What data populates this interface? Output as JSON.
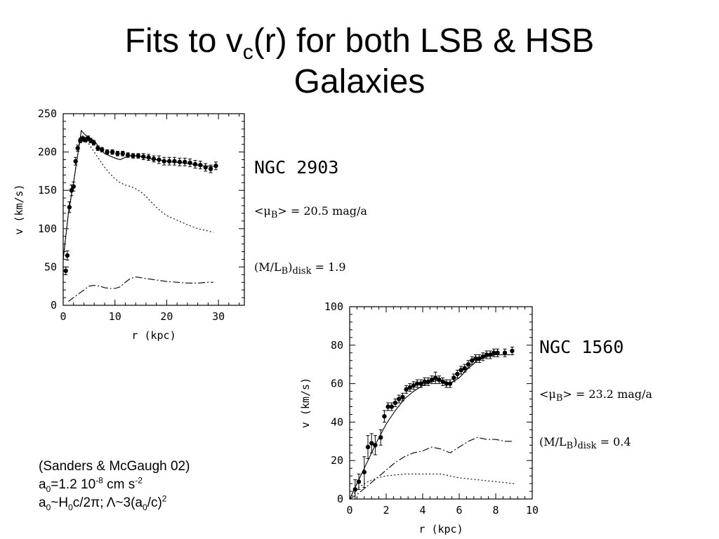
{
  "title": {
    "line1_pre": "Fits to v",
    "line1_sub": "c",
    "line1_post": "(r) for both LSB & HSB",
    "line2": "Galaxies"
  },
  "notes": {
    "line1": "(Sanders & McGaugh 02)",
    "line2": {
      "a": "a",
      "a_sub": "0",
      "eq": "=1.2 10",
      "exp": "-8",
      "unit": " cm s",
      "unit_exp": "-2"
    },
    "line3": {
      "a": "a",
      "a_sub": "0",
      "sep": "~H",
      "h_sub": "0",
      "mid": "c/2π; Λ~3(a",
      "a2_sub": "0",
      "tail": "/c)",
      "tail_exp": "2"
    }
  },
  "chart_data": [
    {
      "type": "scatter",
      "galaxy": "NGC 2903",
      "surface_brightness": {
        "lhs": "<μ",
        "lhs_sub": "B",
        "rhs": "> = 20.5 mag/a"
      },
      "mass_to_light": {
        "lhs": "(M/L",
        "lhs_sub": "B",
        "mid": ")",
        "mid_sub": "disk",
        "rhs": " = 1.9"
      },
      "xlabel": "r (kpc)",
      "ylabel": "v (km/s)",
      "xlim": [
        0,
        35
      ],
      "ylim": [
        0,
        250
      ],
      "xticks": [
        0,
        10,
        20,
        30
      ],
      "yticks": [
        0,
        50,
        100,
        150,
        200,
        250
      ],
      "observed": {
        "x": [
          0.5,
          0.8,
          1.2,
          1.6,
          2.0,
          2.4,
          2.8,
          3.3,
          3.8,
          4.3,
          4.8,
          5.3,
          5.9,
          6.7,
          7.5,
          8.5,
          9.5,
          10.5,
          11.5,
          12.5,
          13.5,
          14.5,
          15.5,
          16.5,
          17.5,
          18.5,
          19.5,
          20.5,
          21.5,
          22.5,
          23.5,
          24.5,
          25.5,
          26.5,
          27.5,
          28.5,
          29.5
        ],
        "y": [
          45,
          65,
          128,
          150,
          155,
          188,
          205,
          215,
          217,
          216,
          218,
          215,
          212,
          205,
          203,
          200,
          200,
          198,
          198,
          196,
          195,
          195,
          194,
          193,
          191,
          190,
          188,
          188,
          188,
          187,
          187,
          186,
          184,
          183,
          180,
          178,
          182
        ],
        "err": [
          5,
          6,
          7,
          7,
          6,
          5,
          4,
          3,
          3,
          3,
          3,
          3,
          3,
          3,
          3,
          3,
          3,
          3,
          3,
          3,
          3,
          3,
          4,
          4,
          4,
          5,
          5,
          5,
          5,
          5,
          5,
          5,
          5,
          5,
          5,
          5,
          5
        ]
      },
      "fit": {
        "x": [
          0,
          1,
          2,
          3,
          3.5,
          4,
          5,
          6,
          7,
          8,
          9,
          10,
          11,
          12,
          13,
          14,
          15,
          17,
          19,
          21,
          23,
          25,
          27,
          29
        ],
        "y": [
          60,
          120,
          160,
          205,
          228,
          224,
          218,
          215,
          205,
          198,
          195,
          192,
          190,
          193,
          195,
          195,
          194,
          191,
          189,
          187,
          186,
          184,
          182,
          181
        ]
      },
      "disk": {
        "x": [
          0,
          1,
          2,
          3,
          3.5,
          4,
          5,
          6,
          7,
          8,
          9,
          10,
          11,
          12,
          13,
          14,
          15,
          16,
          17,
          18,
          19,
          20,
          22,
          24,
          26,
          28,
          29
        ],
        "y": [
          60,
          120,
          160,
          205,
          222,
          220,
          210,
          200,
          190,
          180,
          172,
          165,
          160,
          157,
          155,
          152,
          148,
          142,
          135,
          128,
          122,
          117,
          111,
          105,
          100,
          97,
          95
        ]
      },
      "gas": {
        "x": [
          1,
          2,
          3,
          4,
          5,
          6,
          7,
          8,
          9,
          10,
          11,
          12,
          13,
          14,
          15,
          16,
          18,
          20,
          22,
          24,
          26,
          28,
          29
        ],
        "y": [
          5,
          10,
          15,
          20,
          25,
          26,
          25,
          23,
          22,
          22,
          24,
          30,
          35,
          37,
          36,
          35,
          33,
          31,
          30,
          29,
          29,
          30,
          30
        ]
      }
    },
    {
      "type": "scatter",
      "galaxy": "NGC 1560",
      "surface_brightness": {
        "lhs": "<μ",
        "lhs_sub": "B",
        "rhs": "> = 23.2 mag/a"
      },
      "mass_to_light": {
        "lhs": "(M/L",
        "lhs_sub": "B",
        "mid": ")",
        "mid_sub": "disk",
        "rhs": " = 0.4"
      },
      "xlabel": "r (kpc)",
      "ylabel": "v (km/s)",
      "xlim": [
        0,
        10
      ],
      "ylim": [
        0,
        100
      ],
      "xticks": [
        0,
        2,
        4,
        6,
        8,
        10
      ],
      "yticks": [
        0,
        20,
        40,
        60,
        80,
        100
      ],
      "observed": {
        "x": [
          0.3,
          0.5,
          0.8,
          1.0,
          1.2,
          1.4,
          1.7,
          1.9,
          2.1,
          2.3,
          2.5,
          2.7,
          2.9,
          3.1,
          3.3,
          3.5,
          3.7,
          3.9,
          4.1,
          4.3,
          4.5,
          4.7,
          4.9,
          5.1,
          5.3,
          5.5,
          5.7,
          5.9,
          6.1,
          6.3,
          6.5,
          6.7,
          6.9,
          7.1,
          7.3,
          7.5,
          7.7,
          7.9,
          8.1,
          8.5,
          8.9
        ],
        "y": [
          5,
          9,
          14,
          27,
          29,
          28,
          32,
          43,
          48,
          48,
          50,
          52,
          53,
          57,
          58,
          59,
          60,
          60,
          61,
          61,
          62,
          63,
          62,
          61,
          60,
          60,
          63,
          65,
          67,
          68,
          70,
          72,
          73,
          73,
          74,
          75,
          75,
          76,
          76,
          76,
          77
        ],
        "err": [
          5,
          4,
          8,
          6,
          5,
          5,
          4,
          3,
          2,
          2,
          2,
          2,
          2,
          2,
          2,
          2,
          2,
          2,
          2,
          2,
          2,
          3,
          2,
          2,
          2,
          2,
          2,
          2,
          2,
          2,
          2,
          2,
          2,
          2,
          2,
          2,
          2,
          2,
          2,
          2,
          2
        ]
      },
      "fit": {
        "x": [
          0,
          0.5,
          1,
          1.5,
          2,
          2.5,
          3,
          3.5,
          4,
          4.5,
          5,
          5.5,
          6,
          6.5,
          7,
          7.5,
          8,
          8.5,
          9
        ],
        "y": [
          0,
          10,
          20,
          30,
          39,
          46,
          52,
          56,
          59,
          61,
          62,
          60,
          63,
          68,
          72,
          74,
          75,
          75,
          75
        ]
      },
      "disk": {
        "x": [
          0,
          0.5,
          1,
          1.5,
          2,
          3,
          4,
          5,
          5.5,
          6,
          7,
          8,
          9
        ],
        "y": [
          0,
          6,
          9,
          11,
          12,
          13,
          13,
          13,
          12,
          11,
          10,
          9,
          8
        ]
      },
      "gas": {
        "x": [
          0,
          0.5,
          1,
          1.5,
          2,
          2.5,
          3,
          3.5,
          4,
          4.5,
          5,
          5.5,
          6,
          6.5,
          7,
          7.5,
          8,
          8.5,
          9
        ],
        "y": [
          0,
          3,
          7,
          11,
          15,
          19,
          22,
          24,
          25,
          27,
          26,
          24,
          27,
          30,
          32,
          31,
          31,
          30,
          30
        ]
      }
    }
  ]
}
